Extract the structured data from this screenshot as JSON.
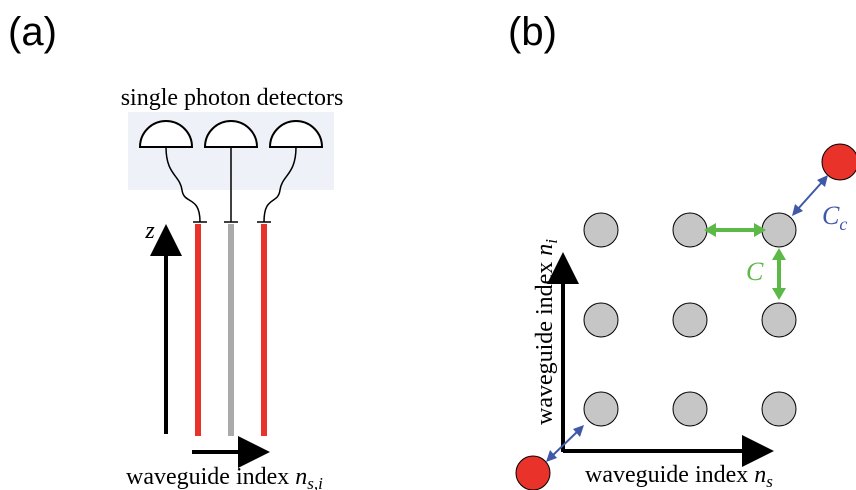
{
  "panel_a": {
    "label": "(a)",
    "detectors_label": "single photon detectors",
    "z_axis_label": "z",
    "x_axis_label_prefix": "waveguide index ",
    "x_axis_label_var": "n",
    "x_axis_label_sub": "s,i",
    "waveguide_colors": [
      "#e8322a",
      "#aaaaaa",
      "#e8322a"
    ]
  },
  "panel_b": {
    "label": "(b)",
    "y_axis_label_prefix": "waveguide index ",
    "y_axis_label_var": "n",
    "y_axis_label_sub": "i",
    "x_axis_label_prefix": "waveguide index ",
    "x_axis_label_var": "n",
    "x_axis_label_sub": "s",
    "coupling_label": "C",
    "corner_coupling_label_var": "C",
    "corner_coupling_label_sub": "c",
    "node_color": "#c6c6c6",
    "corner_node_color": "#e8322a",
    "coupling_color": "#5cb847",
    "corner_coupling_color": "#3f58a8"
  }
}
